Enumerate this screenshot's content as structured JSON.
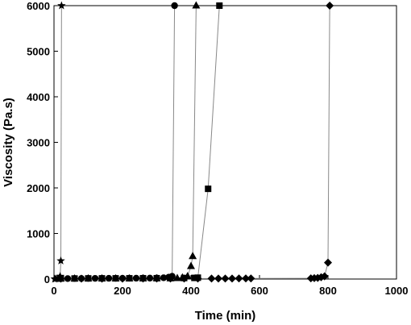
{
  "chart_data": {
    "type": "scatter",
    "title": "",
    "xlabel": "Time (min)",
    "ylabel": "Viscosity (Pa.s)",
    "xlim": [
      0,
      1000
    ],
    "ylim": [
      0,
      6000
    ],
    "xticks": [
      0,
      200,
      400,
      600,
      800,
      1000
    ],
    "yticks": [
      0,
      1000,
      2000,
      3000,
      4000,
      5000,
      6000
    ],
    "x_tick_labels": [
      "0",
      "200",
      "400",
      "600",
      "800",
      "1000"
    ],
    "y_tick_labels": [
      "0",
      "1000",
      "2000",
      "3000",
      "4000",
      "5000",
      "6000"
    ],
    "grid": false,
    "legend": "none",
    "series": [
      {
        "marker": "star",
        "color": "#000000",
        "line_color": "#888888",
        "x": [
          2,
          5,
          10,
          15,
          18,
          20,
          22
        ],
        "y": [
          0,
          5,
          10,
          20,
          60,
          400,
          6000
        ]
      },
      {
        "marker": "circle",
        "color": "#000000",
        "line_color": "#888888",
        "x": [
          20,
          40,
          60,
          80,
          100,
          120,
          140,
          160,
          180,
          200,
          220,
          240,
          260,
          280,
          300,
          320,
          335,
          345,
          352
        ],
        "y": [
          10,
          10,
          12,
          12,
          14,
          15,
          15,
          16,
          16,
          17,
          18,
          18,
          20,
          20,
          22,
          28,
          40,
          60,
          6000
        ]
      },
      {
        "marker": "triangle",
        "color": "#000000",
        "line_color": "#888888",
        "x": [
          20,
          60,
          100,
          140,
          180,
          220,
          260,
          300,
          340,
          360,
          375,
          390,
          400,
          405,
          415
        ],
        "y": [
          8,
          9,
          10,
          10,
          11,
          12,
          12,
          13,
          14,
          18,
          30,
          60,
          280,
          500,
          6000
        ]
      },
      {
        "marker": "square",
        "color": "#000000",
        "line_color": "#888888",
        "x": [
          20,
          60,
          100,
          140,
          180,
          220,
          260,
          300,
          340,
          380,
          410,
          420,
          450,
          483
        ],
        "y": [
          12,
          12,
          14,
          15,
          15,
          16,
          17,
          18,
          20,
          22,
          25,
          30,
          1980,
          6000
        ]
      },
      {
        "marker": "diamond",
        "color": "#000000",
        "line_color": "#888888",
        "x": [
          20,
          80,
          140,
          200,
          260,
          300,
          340,
          380,
          420,
          460,
          480,
          500,
          520,
          540,
          560,
          575,
          750,
          760,
          770,
          780,
          790,
          800,
          805
        ],
        "y": [
          8,
          8,
          9,
          9,
          10,
          10,
          10,
          11,
          11,
          12,
          12,
          12,
          12,
          13,
          13,
          14,
          15,
          20,
          25,
          40,
          60,
          360,
          6000
        ]
      }
    ]
  }
}
